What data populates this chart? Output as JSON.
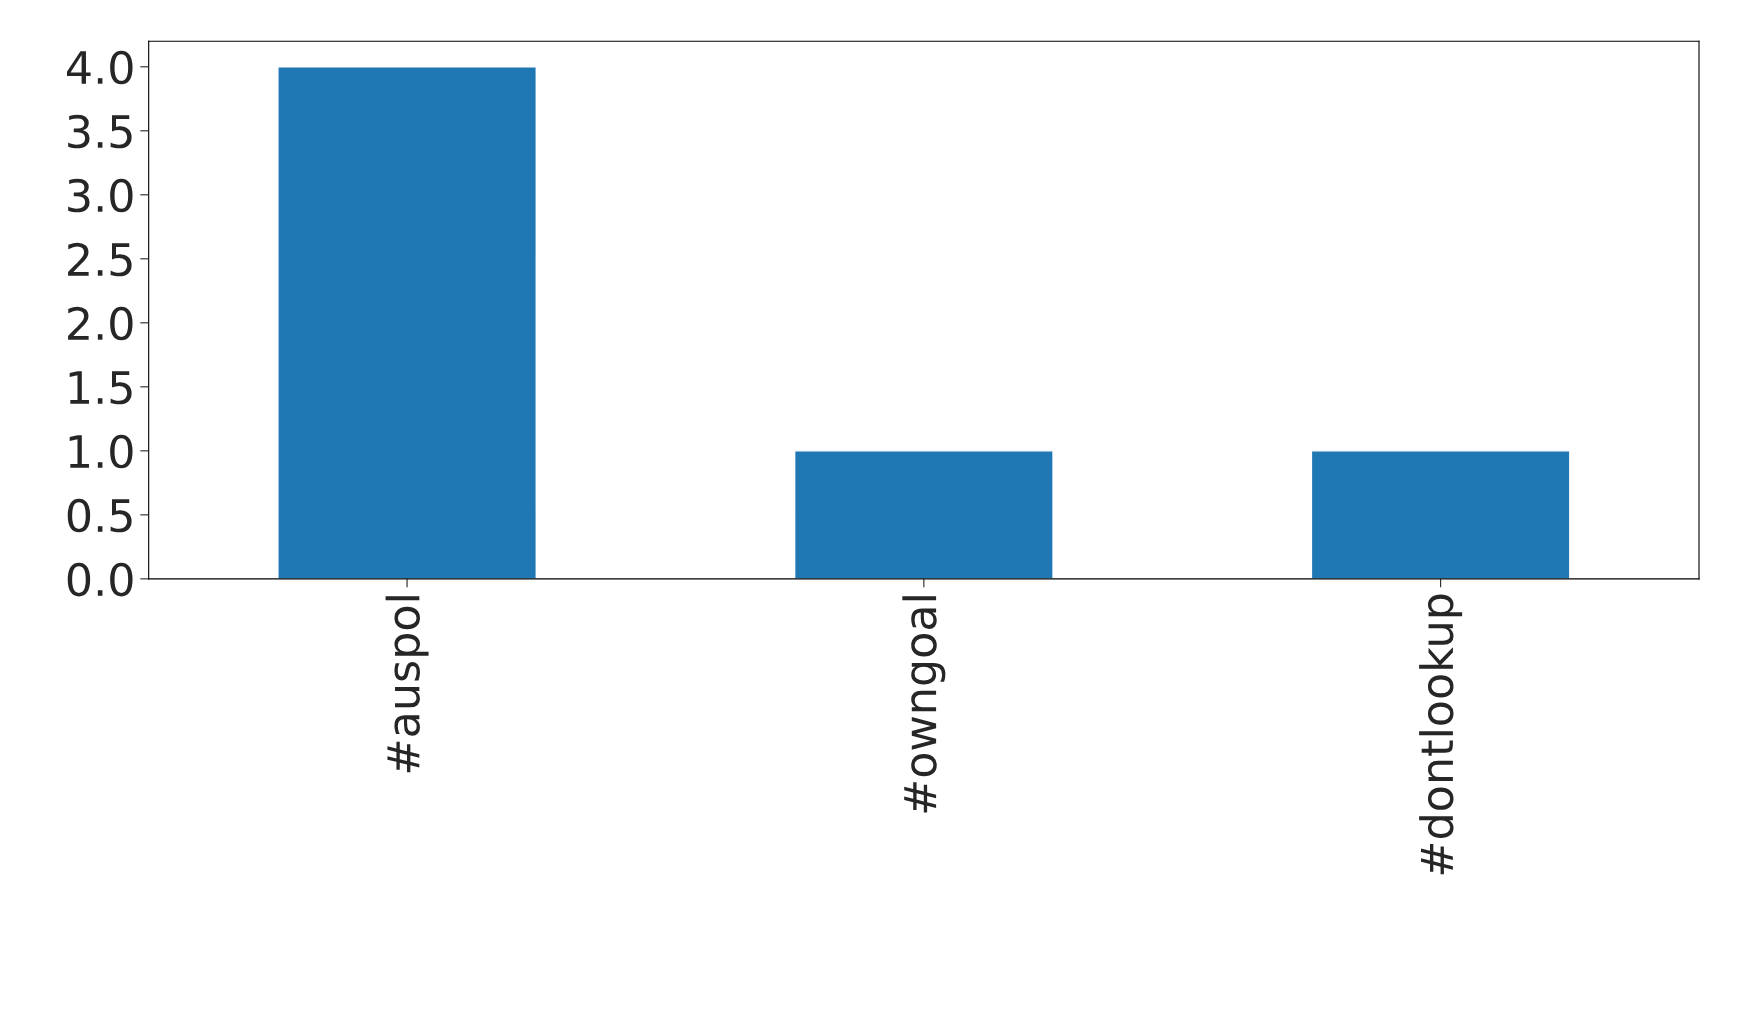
{
  "chart_data": {
    "type": "bar",
    "categories": [
      "#auspol",
      "#owngoal",
      "#dontlookup"
    ],
    "values": [
      4,
      1,
      1
    ],
    "color": "#1f77b4",
    "ylim": [
      0,
      4.2
    ],
    "yticks": [
      {
        "value": 0,
        "label": "0.0"
      },
      {
        "value": 0.5,
        "label": "0.5"
      },
      {
        "value": 1,
        "label": "1.0"
      },
      {
        "value": 1.5,
        "label": "1.5"
      },
      {
        "value": 2,
        "label": "2.0"
      },
      {
        "value": 2.5,
        "label": "2.5"
      },
      {
        "value": 3,
        "label": "3.0"
      },
      {
        "value": 3.5,
        "label": "3.5"
      },
      {
        "value": 4,
        "label": "4.0"
      }
    ],
    "grid": false
  }
}
